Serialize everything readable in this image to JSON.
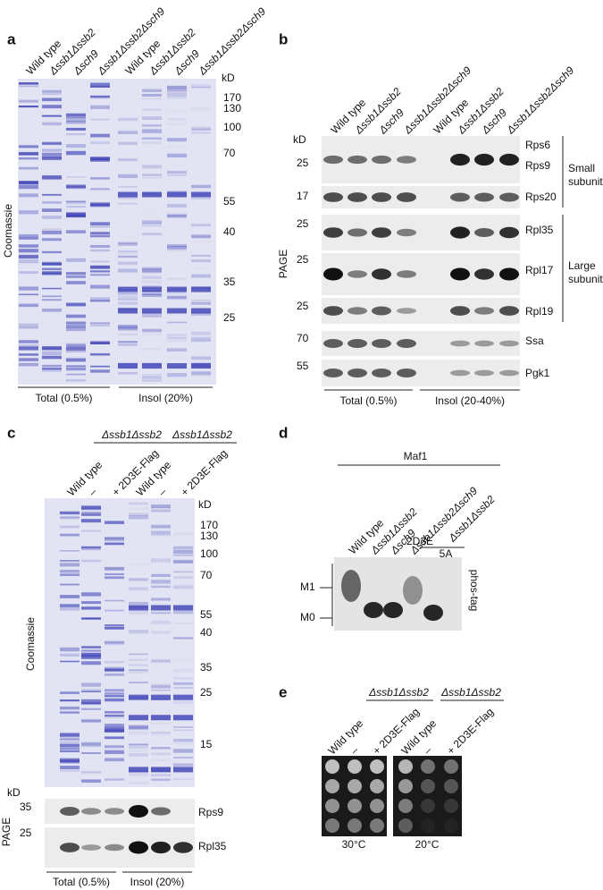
{
  "panel_a": {
    "letter": "a",
    "lanes": [
      "Wild type",
      "Δssb1Δssb2",
      "Δsch9",
      "Δssb1Δssb2Δsch9",
      "Wild type",
      "Δssb1Δssb2",
      "Δsch9",
      "Δssb1Δssb2Δsch9"
    ],
    "kd": "kD",
    "markers": [
      170,
      130,
      100,
      70,
      55,
      40,
      35,
      25
    ],
    "stain": "Coomassie",
    "groups": [
      "Total (0.5%)",
      "Insol (20%)"
    ]
  },
  "panel_b": {
    "letter": "b",
    "lanes": [
      "Wild type",
      "Δssb1Δssb2",
      "Δsch9",
      "Δssb1Δssb2Δsch9",
      "Wild type",
      "Δssb1Δssb2",
      "Δsch9",
      "Δssb1Δssb2Δsch9"
    ],
    "kd": "kD",
    "markers": [
      25,
      17,
      25,
      25,
      25,
      70,
      55
    ],
    "proteins": [
      "Rps6",
      "Rps9",
      "Rps20",
      "Rpl35",
      "Rpl17",
      "Rpl19",
      "Ssa",
      "Pgk1"
    ],
    "subunits": [
      [
        "Small",
        "subunit"
      ],
      [
        "Large",
        "subunit"
      ]
    ],
    "method": "PAGE",
    "groups": [
      "Total (0.5%)",
      "Insol (20-40%)"
    ]
  },
  "panel_c": {
    "letter": "c",
    "strain_headers": [
      "Δssb1Δssb2",
      "Δssb1Δssb2"
    ],
    "lanes": [
      "Wild type",
      "–",
      "+ 2D3E-Flag",
      "Wild type",
      "–",
      "+ 2D3E-Flag"
    ],
    "kd": "kD",
    "markers": [
      170,
      130,
      100,
      70,
      55,
      40,
      35,
      25,
      15
    ],
    "stain": "Coomassie",
    "blot_kd": "kD",
    "blot_markers": [
      35,
      25
    ],
    "proteins": [
      "Rps9",
      "Rpl35"
    ],
    "method": "PAGE",
    "groups": [
      "Total (0.5%)",
      "Insol (20%)"
    ]
  },
  "panel_d": {
    "letter": "d",
    "protein": "Maf1",
    "lanes": [
      "Wild type",
      "Δssb1Δssb2",
      "Δsch9",
      "Δssb1Δssb2Δsch9"
    ],
    "header": "Δssb1Δssb2",
    "sublanes": [
      "2D3E",
      "5A"
    ],
    "forms": [
      "M1",
      "M0"
    ],
    "method": "phos-tag"
  },
  "panel_e": {
    "letter": "e",
    "strain_headers": [
      "Δssb1Δssb2",
      "Δssb1Δssb2"
    ],
    "lanes": [
      "Wild type",
      "–",
      "+ 2D3E-Flag",
      "Wild type",
      "–",
      "+ 2D3E-Flag"
    ],
    "temps": [
      "30°C",
      "20°C"
    ]
  }
}
